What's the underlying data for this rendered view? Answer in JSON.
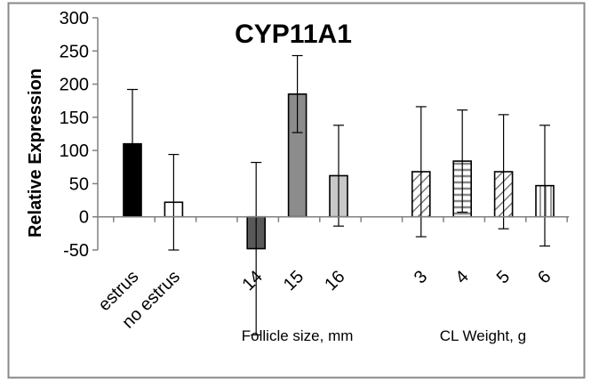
{
  "chart_data": {
    "type": "bar",
    "title": "CYP11A1",
    "xlabel": "",
    "ylabel": "Relative Expression",
    "ylim": [
      -50,
      300
    ],
    "yticks": [
      -50,
      0,
      50,
      100,
      150,
      200,
      250,
      300
    ],
    "grid": false,
    "legend": "none",
    "groups": [
      {
        "label": "",
        "bars": [
          {
            "category": "estrus",
            "value": 110,
            "error": 82,
            "fill": "#000000",
            "pattern": "solid"
          },
          {
            "category": "no estrus",
            "value": 22,
            "error": 72,
            "fill": "#ffffff",
            "pattern": "solid"
          }
        ]
      },
      {
        "label": "Follicle size, mm",
        "bars": [
          {
            "category": "14",
            "value": -48,
            "error": 130,
            "fill": "#595959",
            "pattern": "solid"
          },
          {
            "category": "15",
            "value": 185,
            "error": 58,
            "fill": "#8c8c8c",
            "pattern": "solid"
          },
          {
            "category": "16",
            "value": 62,
            "error": 76,
            "fill": "#c8c8c8",
            "pattern": "solid"
          }
        ]
      },
      {
        "label": "CL Weight, g",
        "bars": [
          {
            "category": "3",
            "value": 68,
            "error": 98,
            "fill": "#ffffff",
            "pattern": "diagonal"
          },
          {
            "category": "4",
            "value": 84,
            "error": 77,
            "fill": "#ffffff",
            "pattern": "horizontal"
          },
          {
            "category": "5",
            "value": 68,
            "error": 86,
            "fill": "#ffffff",
            "pattern": "diagonal"
          },
          {
            "category": "6",
            "value": 47,
            "error": 91,
            "fill": "#ffffff",
            "pattern": "vertical"
          }
        ]
      }
    ]
  }
}
